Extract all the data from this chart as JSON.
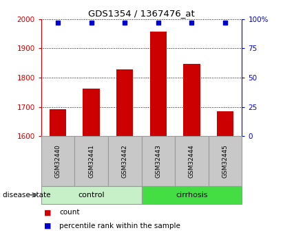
{
  "title": "GDS1354 / 1367476_at",
  "samples": [
    "GSM32440",
    "GSM32441",
    "GSM32442",
    "GSM32443",
    "GSM32444",
    "GSM32445"
  ],
  "bar_values": [
    1692,
    1762,
    1828,
    1958,
    1847,
    1685
  ],
  "percentile_values": [
    97,
    97,
    97,
    97,
    97,
    97
  ],
  "bar_color": "#cc0000",
  "percentile_color": "#0000cc",
  "ylim_left": [
    1600,
    2000
  ],
  "ylim_right": [
    0,
    100
  ],
  "yticks_left": [
    1600,
    1700,
    1800,
    1900,
    2000
  ],
  "yticks_right": [
    0,
    25,
    50,
    75,
    100
  ],
  "yticklabels_right": [
    "0",
    "25",
    "50",
    "75",
    "100%"
  ],
  "grid_color": "#000000",
  "axis_color_left": "#cc0000",
  "axis_color_right": "#0000cc",
  "bg_color": "#ffffff",
  "sample_box_color": "#c8c8c8",
  "bar_width": 0.5,
  "group_colors": [
    "#c8f0c8",
    "#44dd44"
  ],
  "group_labels": [
    "control",
    "cirrhosis"
  ],
  "disease_state_label": "disease state",
  "legend_items": [
    {
      "label": "count",
      "color": "#cc0000"
    },
    {
      "label": "percentile rank within the sample",
      "color": "#0000cc"
    }
  ]
}
